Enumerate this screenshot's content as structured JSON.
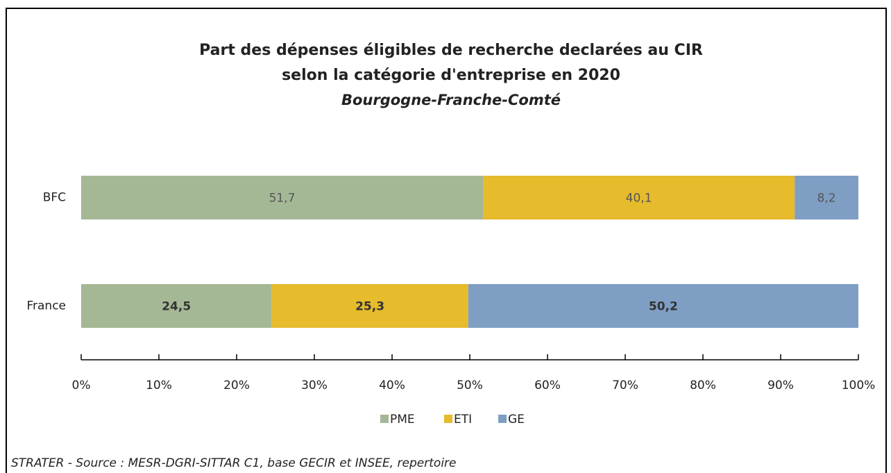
{
  "chart_data": {
    "type": "stacked_barh",
    "title": [
      "Part des dépenses éligibles de recherche declarées au CIR",
      "selon la catégorie d'entreprise en 2020"
    ],
    "subtitle": "Bourgogne-Franche-Comté",
    "categories": [
      "BFC",
      "France"
    ],
    "series": [
      {
        "name": "PME",
        "color": "#a5b896",
        "values": [
          51.7,
          24.5
        ],
        "value_labels": [
          "51,7",
          "24,5"
        ]
      },
      {
        "name": "ETI",
        "color": "#e6bb2c",
        "values": [
          40.1,
          25.3
        ],
        "value_labels": [
          "40,1",
          "25,3"
        ]
      },
      {
        "name": "GE",
        "color": "#7f9ec4",
        "values": [
          8.2,
          50.2
        ],
        "value_labels": [
          "8,2",
          "50,2"
        ]
      }
    ],
    "xlim": [
      0,
      100
    ],
    "xticks": [
      {
        "value": 0,
        "label": "0%"
      },
      {
        "value": 10,
        "label": "10%"
      },
      {
        "value": 20,
        "label": "20%"
      },
      {
        "value": 30,
        "label": "30%"
      },
      {
        "value": 40,
        "label": "40%"
      },
      {
        "value": 50,
        "label": "50%"
      },
      {
        "value": 60,
        "label": "60%"
      },
      {
        "value": 70,
        "label": "70%"
      },
      {
        "value": 80,
        "label": "80%"
      },
      {
        "value": 90,
        "label": "90%"
      },
      {
        "value": 100,
        "label": "100%"
      }
    ],
    "legend": "bottom",
    "source": "STRATER - Source : MESR-DGRI-SITTAR C1, base GECIR et INSEE, repertoire"
  }
}
